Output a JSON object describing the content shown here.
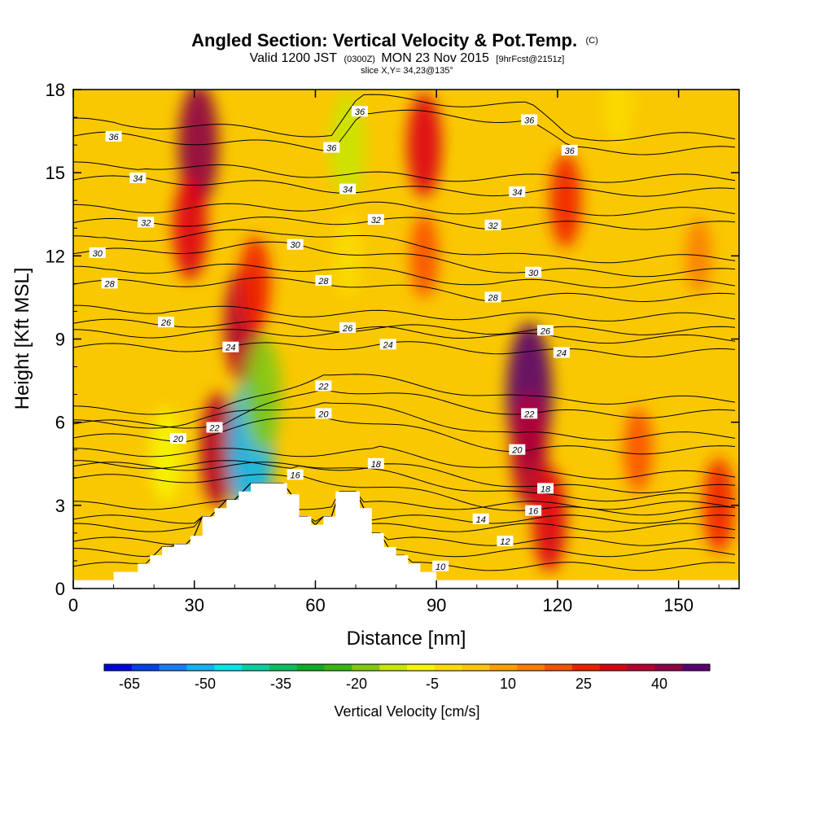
{
  "title": {
    "main": "Angled Section: Vertical Velocity & Pot.Temp.",
    "main_suffix": "(C)",
    "valid_prefix": "Valid 1200 JST",
    "valid_z": "(0300Z)",
    "valid_date": "MON 23 Nov 2015",
    "forecast": "[9hrFcst@2151z]",
    "slice": "slice X,Y= 34,23@135°"
  },
  "colors": {
    "palette": [
      "#0000e6",
      "#0a3cf0",
      "#1e7cf5",
      "#10b4f0",
      "#00e6e6",
      "#00d2a0",
      "#10be64",
      "#10aa28",
      "#3cb414",
      "#82c814",
      "#c8e600",
      "#f5f500",
      "#fadc00",
      "#fac800",
      "#faa000",
      "#fa7d00",
      "#fa5000",
      "#f01e00",
      "#dc0014",
      "#b40032",
      "#8c0046",
      "#5a006e"
    ],
    "background_field": "#fac800",
    "terrain": "#ffffff",
    "contour": "#000000"
  },
  "chart_data": {
    "type": "heatmap",
    "title": "Angled Section: Vertical Velocity & Pot.Temp. (C)",
    "xlabel": "Distance [nm]",
    "ylabel": "Height [Kft MSL]",
    "xlim": [
      0,
      165
    ],
    "ylim": [
      0,
      18
    ],
    "xticks": [
      "0",
      "30",
      "60",
      "90",
      "120",
      "150"
    ],
    "yticks": [
      "0",
      "3",
      "6",
      "9",
      "12",
      "15",
      "18"
    ],
    "terrain_profile": [
      [
        0,
        0.3
      ],
      [
        10,
        0.3
      ],
      [
        10,
        0.6
      ],
      [
        16,
        0.6
      ],
      [
        16,
        0.9
      ],
      [
        19,
        0.9
      ],
      [
        19,
        1.2
      ],
      [
        22,
        1.2
      ],
      [
        22,
        1.5
      ],
      [
        25,
        1.5
      ],
      [
        25,
        1.6
      ],
      [
        29,
        1.6
      ],
      [
        29,
        1.9
      ],
      [
        32,
        1.9
      ],
      [
        32,
        2.6
      ],
      [
        35,
        2.6
      ],
      [
        35,
        2.9
      ],
      [
        38,
        2.9
      ],
      [
        38,
        3.2
      ],
      [
        41,
        3.2
      ],
      [
        41,
        3.5
      ],
      [
        44,
        3.5
      ],
      [
        44,
        3.8
      ],
      [
        53,
        3.8
      ],
      [
        53,
        3.4
      ],
      [
        56,
        3.4
      ],
      [
        56,
        2.6
      ],
      [
        59,
        2.6
      ],
      [
        59,
        2.3
      ],
      [
        62,
        2.3
      ],
      [
        62,
        2.6
      ],
      [
        65,
        2.6
      ],
      [
        65,
        3.5
      ],
      [
        71,
        3.5
      ],
      [
        71,
        2.9
      ],
      [
        74,
        2.9
      ],
      [
        74,
        2.0
      ],
      [
        77,
        2.0
      ],
      [
        77,
        1.5
      ],
      [
        80,
        1.5
      ],
      [
        80,
        1.2
      ],
      [
        83,
        1.2
      ],
      [
        83,
        0.9
      ],
      [
        86,
        0.9
      ],
      [
        86,
        0.6
      ],
      [
        90,
        0.6
      ],
      [
        90,
        0.3
      ],
      [
        165,
        0.3
      ]
    ],
    "vertical_velocity_features": [
      {
        "x": 31,
        "y": 16,
        "value": 30
      },
      {
        "x": 29,
        "y": 13,
        "value": 20
      },
      {
        "x": 42,
        "y": 9.5,
        "value": 25
      },
      {
        "x": 45,
        "y": 11,
        "value": 15
      },
      {
        "x": 36,
        "y": 5,
        "value": 25
      },
      {
        "x": 44,
        "y": 5,
        "value": -55
      },
      {
        "x": 47,
        "y": 7,
        "value": -25
      },
      {
        "x": 23,
        "y": 4.8,
        "value": -15
      },
      {
        "x": 68,
        "y": 16,
        "value": -20
      },
      {
        "x": 68,
        "y": 12,
        "value": -10
      },
      {
        "x": 87,
        "y": 16,
        "value": 20
      },
      {
        "x": 87,
        "y": 12,
        "value": 10
      },
      {
        "x": 113,
        "y": 7,
        "value": 40
      },
      {
        "x": 113,
        "y": 5,
        "value": 25
      },
      {
        "x": 118,
        "y": 2.5,
        "value": 20
      },
      {
        "x": 122,
        "y": 14,
        "value": 15
      },
      {
        "x": 135,
        "y": 17.5,
        "value": -10
      },
      {
        "x": 100,
        "y": 10,
        "value": -5
      },
      {
        "x": 140,
        "y": 10,
        "value": -5
      },
      {
        "x": 95,
        "y": 6,
        "value": -5
      },
      {
        "x": 100,
        "y": 15,
        "value": -5
      },
      {
        "x": 140,
        "y": 5,
        "value": 10
      },
      {
        "x": 160,
        "y": 3,
        "value": 15
      },
      {
        "x": 155,
        "y": 12,
        "value": 5
      }
    ],
    "potential_temperature_labels": [
      {
        "text": "36",
        "x": 10,
        "y": 16.3
      },
      {
        "text": "36",
        "x": 71,
        "y": 17.2
      },
      {
        "text": "36",
        "x": 64,
        "y": 15.9
      },
      {
        "text": "36",
        "x": 113,
        "y": 16.9
      },
      {
        "text": "36",
        "x": 123,
        "y": 15.8
      },
      {
        "text": "34",
        "x": 16,
        "y": 14.8
      },
      {
        "text": "34",
        "x": 68,
        "y": 14.4
      },
      {
        "text": "34",
        "x": 110,
        "y": 14.3
      },
      {
        "text": "32",
        "x": 18,
        "y": 13.2
      },
      {
        "text": "32",
        "x": 75,
        "y": 13.3
      },
      {
        "text": "32",
        "x": 104,
        "y": 13.1
      },
      {
        "text": "30",
        "x": 6,
        "y": 12.1
      },
      {
        "text": "30",
        "x": 55,
        "y": 12.4
      },
      {
        "text": "30",
        "x": 114,
        "y": 11.4
      },
      {
        "text": "28",
        "x": 9,
        "y": 11.0
      },
      {
        "text": "28",
        "x": 62,
        "y": 11.1
      },
      {
        "text": "28",
        "x": 104,
        "y": 10.5
      },
      {
        "text": "26",
        "x": 23,
        "y": 9.6
      },
      {
        "text": "26",
        "x": 68,
        "y": 9.4
      },
      {
        "text": "26",
        "x": 117,
        "y": 9.3
      },
      {
        "text": "24",
        "x": 39,
        "y": 8.7
      },
      {
        "text": "24",
        "x": 78,
        "y": 8.8
      },
      {
        "text": "24",
        "x": 121,
        "y": 8.5
      },
      {
        "text": "22",
        "x": 35,
        "y": 5.8
      },
      {
        "text": "22",
        "x": 62,
        "y": 7.3
      },
      {
        "text": "22",
        "x": 113,
        "y": 6.3
      },
      {
        "text": "20",
        "x": 26,
        "y": 5.4
      },
      {
        "text": "20",
        "x": 62,
        "y": 6.3
      },
      {
        "text": "20",
        "x": 110,
        "y": 5.0
      },
      {
        "text": "18",
        "x": 75,
        "y": 4.5
      },
      {
        "text": "18",
        "x": 117,
        "y": 3.6
      },
      {
        "text": "16",
        "x": 55,
        "y": 4.1
      },
      {
        "text": "16",
        "x": 114,
        "y": 2.8
      },
      {
        "text": "14",
        "x": 101,
        "y": 2.5
      },
      {
        "text": "12",
        "x": 107,
        "y": 1.7
      },
      {
        "text": "10",
        "x": 91,
        "y": 0.8
      }
    ],
    "colorbar": {
      "label": "Vertical Velocity [cm/s]",
      "min": -70,
      "max": 50,
      "step": 5,
      "tick_labels": [
        "-65",
        "-50",
        "-35",
        "-20",
        "-5",
        "10",
        "25",
        "40"
      ],
      "tick_values": [
        -65,
        -50,
        -35,
        -20,
        -5,
        10,
        25,
        40
      ]
    }
  }
}
